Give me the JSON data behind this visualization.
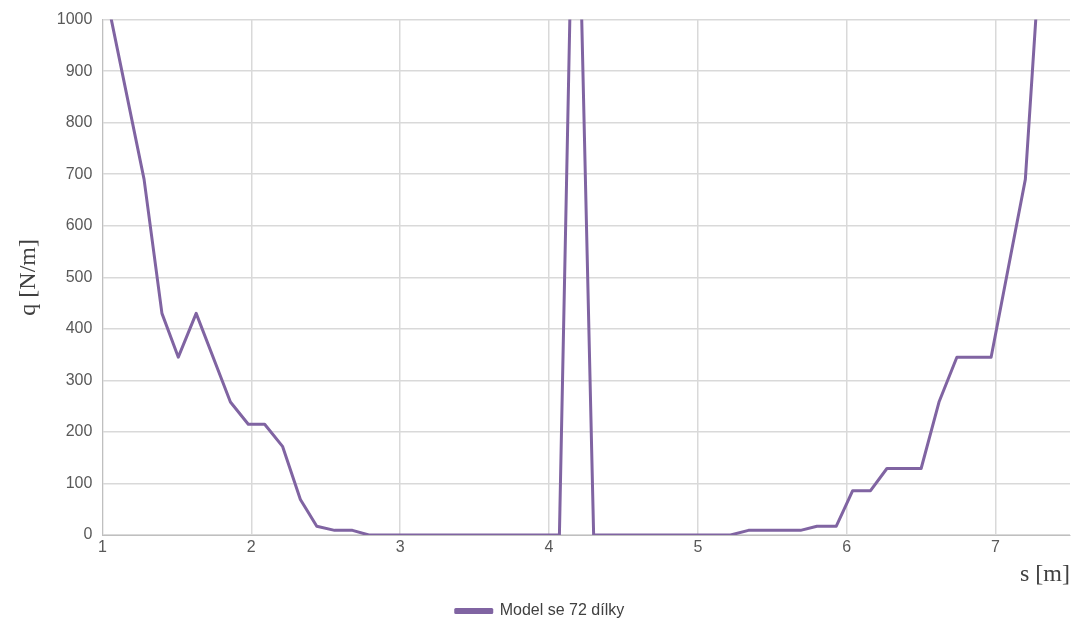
{
  "chart_data": {
    "type": "line",
    "xlabel": "s [m]",
    "ylabel": "q [N/m]",
    "xlim": [
      1,
      7.5
    ],
    "xticks": [
      1,
      2,
      3,
      4,
      5,
      6,
      7
    ],
    "ylim": [
      0,
      1000
    ],
    "yticks": [
      0,
      100,
      200,
      300,
      400,
      500,
      600,
      700,
      800,
      900,
      1000
    ],
    "grid": true,
    "legend": "bottom",
    "marker": "none",
    "line_style": "solid",
    "series": [
      {
        "name": "Model se 72 dílky",
        "color": "#8064a2",
        "x": [
          1.06,
          1.28,
          1.4,
          1.51,
          1.63,
          1.86,
          1.98,
          2.09,
          2.21,
          2.33,
          2.44,
          2.56,
          2.68,
          2.79,
          4.07,
          4.14,
          4.18,
          4.22,
          4.3,
          5.22,
          5.34,
          5.69,
          5.8,
          5.93,
          6.04,
          6.16,
          6.27,
          6.5,
          6.62,
          6.74,
          6.97,
          7.2,
          7.27
        ],
        "values": [
          1000,
          690,
          430,
          345,
          430,
          258,
          215,
          215,
          172,
          69,
          17,
          9,
          9,
          0,
          0,
          1000,
          null,
          1000,
          0,
          0,
          9,
          9,
          17,
          17,
          86,
          86,
          129,
          129,
          258,
          345,
          345,
          690,
          1000
        ]
      }
    ]
  }
}
